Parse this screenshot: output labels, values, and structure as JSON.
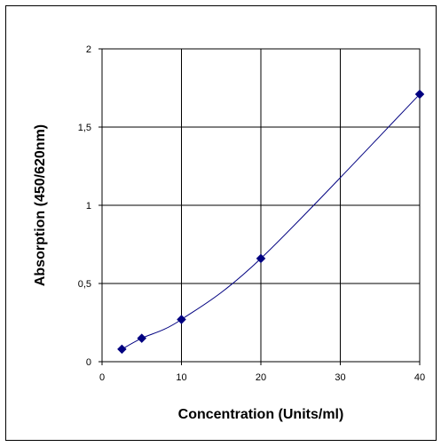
{
  "chart_data": {
    "type": "scatter",
    "title": "",
    "xlabel": "Concentration (Units/ml)",
    "ylabel": "Absorption (450/620nm)",
    "xlim": [
      0,
      40
    ],
    "ylim": [
      0,
      2
    ],
    "xticks": [
      0,
      10,
      20,
      30,
      40
    ],
    "yticks": [
      0,
      0.5,
      1,
      1.5,
      2
    ],
    "xtick_labels": [
      "0",
      "10",
      "20",
      "30",
      "40"
    ],
    "ytick_labels": [
      "0",
      "0,5",
      "1",
      "1,5",
      "2"
    ],
    "grid": true,
    "legend": "none",
    "smooth_line": true,
    "series": [
      {
        "x": [
          2.5,
          5,
          10,
          20,
          40
        ],
        "y": [
          0.08,
          0.15,
          0.27,
          0.66,
          1.71
        ],
        "marker": "diamond",
        "color": "#000080"
      }
    ]
  }
}
